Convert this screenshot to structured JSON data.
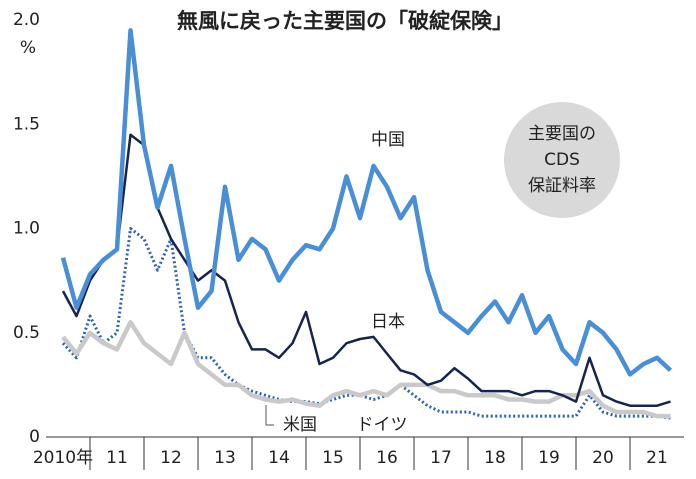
{
  "chart_data": {
    "type": "line",
    "title": "無風に戻った主要国の「破綻保険」",
    "y_unit": "%",
    "annotation": [
      "主要国の",
      "CDS",
      "保証料率"
    ],
    "x": [
      2010.5,
      2010.75,
      2011,
      2011.25,
      2011.5,
      2011.75,
      2012,
      2012.25,
      2012.5,
      2012.75,
      2013,
      2013.25,
      2013.5,
      2013.75,
      2014,
      2014.25,
      2014.5,
      2014.75,
      2015,
      2015.25,
      2015.5,
      2015.75,
      2016,
      2016.25,
      2016.5,
      2016.75,
      2017,
      2017.25,
      2017.5,
      2017.75,
      2018,
      2018.25,
      2018.5,
      2018.75,
      2019,
      2019.25,
      2019.5,
      2019.75,
      2020,
      2020.25,
      2020.5,
      2020.75,
      2021,
      2021.25,
      2021.5,
      2021.75
    ],
    "xlim": [
      2010,
      2022
    ],
    "xticks": [
      {
        "value": 2010.5,
        "label": "2010年"
      },
      {
        "value": 2011.5,
        "label": "11"
      },
      {
        "value": 2012.5,
        "label": "12"
      },
      {
        "value": 2013.5,
        "label": "13"
      },
      {
        "value": 2014.5,
        "label": "14"
      },
      {
        "value": 2015.5,
        "label": "15"
      },
      {
        "value": 2016.5,
        "label": "16"
      },
      {
        "value": 2017.5,
        "label": "17"
      },
      {
        "value": 2018.5,
        "label": "18"
      },
      {
        "value": 2019.5,
        "label": "19"
      },
      {
        "value": 2020.5,
        "label": "20"
      },
      {
        "value": 2021.5,
        "label": "21"
      }
    ],
    "ylim": [
      0,
      2
    ],
    "yticks": [
      0,
      0.5,
      {
        "value": 1,
        "label": "1.0"
      },
      1.5,
      {
        "value": 2,
        "label": "2.0"
      }
    ],
    "series": [
      {
        "name": "中国",
        "color": "#4a8fd6",
        "line_style": "solid",
        "values": [
          0.86,
          0.62,
          0.78,
          0.85,
          0.9,
          1.95,
          1.4,
          1.1,
          1.3,
          0.95,
          0.62,
          0.7,
          1.2,
          0.85,
          0.95,
          0.9,
          0.75,
          0.85,
          0.92,
          0.9,
          1.0,
          1.25,
          1.05,
          1.3,
          1.2,
          1.05,
          1.15,
          0.8,
          0.6,
          0.55,
          0.5,
          0.58,
          0.65,
          0.55,
          0.68,
          0.5,
          0.58,
          0.42,
          0.35,
          0.55,
          0.5,
          0.42,
          0.3,
          0.35,
          0.38,
          0.32
        ]
      },
      {
        "name": "日本",
        "color": "#16244f",
        "line_style": "solid",
        "values": [
          0.7,
          0.58,
          0.75,
          0.85,
          0.9,
          1.45,
          1.4,
          1.1,
          0.95,
          0.85,
          0.75,
          0.8,
          0.75,
          0.55,
          0.42,
          0.42,
          0.38,
          0.45,
          0.6,
          0.35,
          0.38,
          0.45,
          0.47,
          0.48,
          0.4,
          0.32,
          0.3,
          0.25,
          0.27,
          0.33,
          0.28,
          0.22,
          0.22,
          0.22,
          0.2,
          0.22,
          0.22,
          0.2,
          0.17,
          0.38,
          0.2,
          0.17,
          0.15,
          0.15,
          0.15,
          0.17
        ]
      },
      {
        "name": "米国",
        "color": "#c9c9c9",
        "line_style": "solid",
        "values": [
          0.48,
          0.4,
          0.5,
          0.45,
          0.42,
          0.55,
          0.45,
          0.4,
          0.35,
          0.5,
          0.35,
          0.3,
          0.25,
          0.25,
          0.2,
          0.18,
          0.17,
          0.18,
          0.16,
          0.15,
          0.2,
          0.22,
          0.2,
          0.22,
          0.2,
          0.25,
          0.25,
          0.25,
          0.22,
          0.22,
          0.2,
          0.2,
          0.2,
          0.18,
          0.18,
          0.17,
          0.17,
          0.2,
          0.2,
          0.22,
          0.15,
          0.12,
          0.12,
          0.12,
          0.1,
          0.1
        ]
      },
      {
        "name": "ドイツ",
        "color": "#2d62b4",
        "line_style": "dotted",
        "values": [
          0.45,
          0.38,
          0.58,
          0.45,
          0.5,
          1.0,
          0.95,
          0.8,
          0.95,
          0.5,
          0.38,
          0.38,
          0.3,
          0.25,
          0.22,
          0.2,
          0.18,
          0.17,
          0.17,
          0.16,
          0.18,
          0.2,
          0.2,
          0.18,
          0.2,
          0.25,
          0.2,
          0.15,
          0.12,
          0.12,
          0.12,
          0.1,
          0.1,
          0.1,
          0.1,
          0.1,
          0.1,
          0.1,
          0.1,
          0.2,
          0.12,
          0.1,
          0.1,
          0.1,
          0.1,
          0.09
        ]
      }
    ]
  }
}
